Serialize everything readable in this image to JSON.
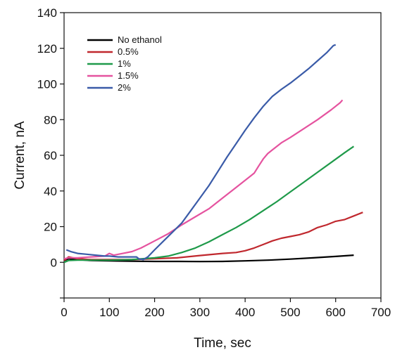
{
  "chart_data": {
    "type": "line",
    "xlabel": "Time, sec",
    "ylabel": "Current, nA",
    "xlim": [
      0,
      700
    ],
    "ylim": [
      -20,
      140
    ],
    "xticks": [
      0,
      100,
      200,
      300,
      400,
      500,
      600,
      700
    ],
    "yticks": [
      0,
      20,
      40,
      60,
      80,
      100,
      120,
      140
    ],
    "grid": false,
    "legend": "top-left",
    "series": [
      {
        "name": "No ethanol",
        "color": "#000000",
        "x": [
          0,
          10,
          30,
          60,
          100,
          150,
          200,
          250,
          300,
          350,
          400,
          450,
          500,
          550,
          600,
          640
        ],
        "y": [
          1,
          2,
          1.5,
          1,
          0.8,
          0.6,
          0.5,
          0.5,
          0.4,
          0.5,
          0.8,
          1.2,
          1.8,
          2.5,
          3.3,
          4
        ]
      },
      {
        "name": "0.5%",
        "color": "#c0282e",
        "x": [
          0,
          10,
          30,
          60,
          100,
          150,
          200,
          250,
          300,
          350,
          380,
          400,
          420,
          440,
          460,
          480,
          500,
          520,
          540,
          560,
          580,
          600,
          620,
          640,
          660
        ],
        "y": [
          1,
          3,
          2,
          1.5,
          1.5,
          1.5,
          2,
          2.5,
          3.8,
          5,
          5.5,
          6.5,
          8,
          10,
          12,
          13.5,
          14.5,
          15.5,
          17,
          19.5,
          21,
          23,
          24,
          26,
          28
        ]
      },
      {
        "name": "1%",
        "color": "#1f9a4a",
        "x": [
          0,
          10,
          30,
          60,
          100,
          150,
          200,
          230,
          260,
          290,
          320,
          350,
          380,
          410,
          440,
          470,
          500,
          530,
          560,
          590,
          620,
          640
        ],
        "y": [
          0,
          1,
          1.2,
          1.2,
          1.2,
          1.5,
          2.5,
          3.5,
          5.5,
          8,
          11.5,
          15.5,
          19.5,
          24,
          29,
          34,
          39.5,
          45,
          50.5,
          56,
          61.5,
          65
        ]
      },
      {
        "name": "1.5%",
        "color": "#e5539f",
        "x": [
          0,
          10,
          30,
          60,
          90,
          100,
          110,
          130,
          150,
          170,
          200,
          230,
          260,
          290,
          320,
          350,
          380,
          410,
          420,
          430,
          440,
          450,
          460,
          480,
          500,
          530,
          560,
          590,
          610,
          615
        ],
        "y": [
          2,
          2.5,
          2.5,
          3,
          3.5,
          5,
          4,
          5,
          6,
          8,
          12,
          16,
          21,
          25.5,
          30,
          36,
          42,
          48,
          50,
          54,
          58,
          61,
          63,
          67,
          70,
          75,
          80,
          85.5,
          89.5,
          91
        ]
      },
      {
        "name": "2%",
        "color": "#3a5ba8",
        "x": [
          5,
          15,
          30,
          50,
          70,
          90,
          100,
          120,
          140,
          160,
          165,
          175,
          185,
          200,
          220,
          240,
          260,
          280,
          300,
          320,
          340,
          360,
          380,
          400,
          420,
          440,
          460,
          480,
          500,
          520,
          540,
          560,
          580,
          595,
          600
        ],
        "y": [
          7,
          6,
          5,
          4.5,
          4,
          3.5,
          3.5,
          3,
          3,
          3,
          2,
          1.5,
          3,
          7,
          12,
          17,
          22,
          29,
          36,
          43,
          51,
          59,
          66.5,
          74,
          81,
          87.5,
          93,
          97,
          100.5,
          104.5,
          108.5,
          113,
          117.5,
          121.5,
          122
        ]
      }
    ]
  }
}
